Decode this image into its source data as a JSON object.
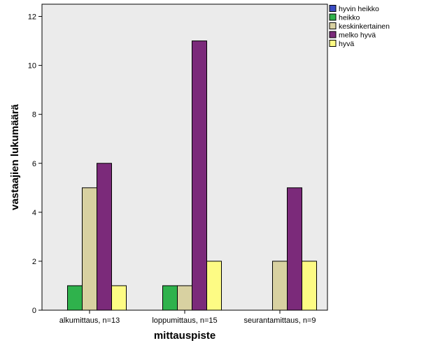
{
  "chart_data": {
    "type": "bar",
    "categories": [
      "alkumittaus, n=13",
      "loppumittaus, n=15",
      "seurantamittaus, n=9"
    ],
    "series": [
      {
        "name": "hyvin heikko",
        "color": "#3a4bc4",
        "values": [
          0,
          0,
          0
        ]
      },
      {
        "name": "heikko",
        "color": "#2fb24c",
        "values": [
          1,
          1,
          0
        ]
      },
      {
        "name": "keskinkertainen",
        "color": "#d8d1a1",
        "values": [
          5,
          1,
          2
        ]
      },
      {
        "name": "melko hyvä",
        "color": "#7b2a7a",
        "values": [
          6,
          11,
          5
        ]
      },
      {
        "name": "hyvä",
        "color": "#fdfb84",
        "values": [
          1,
          2,
          2
        ]
      }
    ],
    "xlabel": "mittauspiste",
    "ylabel": "vastaajien lukumäärä",
    "ylim": [
      0,
      12.5
    ],
    "yticks": [
      0,
      2,
      4,
      6,
      8,
      10,
      12
    ],
    "plot_background": "#ebebeb",
    "legend_position": "top-right",
    "grid": false
  }
}
